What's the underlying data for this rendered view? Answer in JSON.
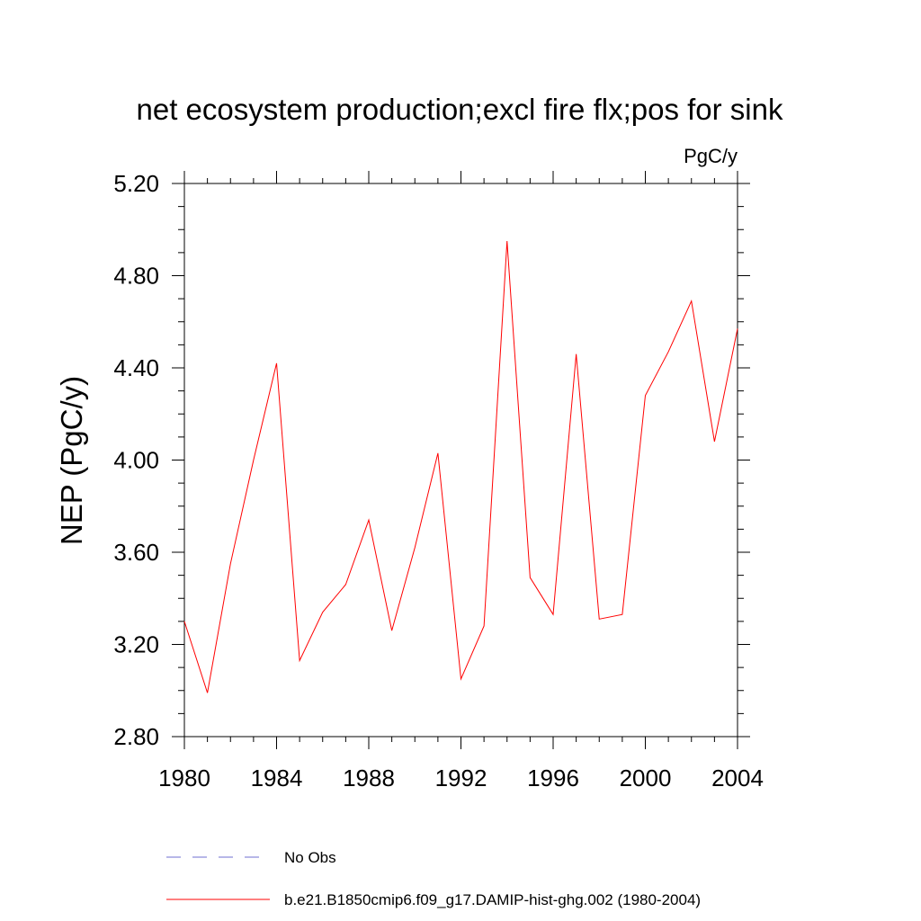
{
  "chart_data": {
    "type": "line",
    "title": "net ecosystem production;excl fire flx;pos for sink",
    "units_label": "PgC/y",
    "ylabel": "NEP  (PgC/y)",
    "xlabel": "",
    "xlim": [
      1980,
      2004
    ],
    "ylim": [
      2.8,
      5.2
    ],
    "x_ticks": [
      1980,
      1984,
      1988,
      1992,
      1996,
      2000,
      2004
    ],
    "x_tick_labels": [
      "1980",
      "1984",
      "1988",
      "1992",
      "1996",
      "2000",
      "2004"
    ],
    "y_ticks": [
      2.8,
      3.2,
      3.6,
      4.0,
      4.4,
      4.8,
      5.2
    ],
    "y_tick_labels": [
      "2.80",
      "3.20",
      "3.60",
      "4.00",
      "4.40",
      "4.80",
      "5.20"
    ],
    "grid": false,
    "legend_position": "bottom",
    "series": [
      {
        "name": "b.e21.B1850cmip6.f09_g17.DAMIP-hist-ghg.002 (1980-2004)",
        "color": "#ff0000",
        "style": "solid",
        "x": [
          1980,
          1981,
          1982,
          1983,
          1984,
          1985,
          1986,
          1987,
          1988,
          1989,
          1990,
          1991,
          1992,
          1993,
          1994,
          1995,
          1996,
          1997,
          1998,
          1999,
          2000,
          2001,
          2002,
          2003,
          2004
        ],
        "y": [
          3.3,
          2.99,
          3.55,
          4.0,
          4.42,
          3.13,
          3.34,
          3.46,
          3.74,
          3.26,
          3.62,
          4.03,
          3.05,
          3.28,
          4.95,
          3.49,
          3.33,
          4.46,
          3.31,
          3.33,
          4.28,
          4.47,
          4.69,
          4.08,
          4.57
        ]
      }
    ],
    "legend": [
      {
        "label": "No Obs",
        "color": "#6f6fd0",
        "style": "dashed"
      },
      {
        "label": "b.e21.B1850cmip6.f09_g17.DAMIP-hist-ghg.002 (1980-2004)",
        "color": "#ff0000",
        "style": "solid"
      }
    ]
  }
}
